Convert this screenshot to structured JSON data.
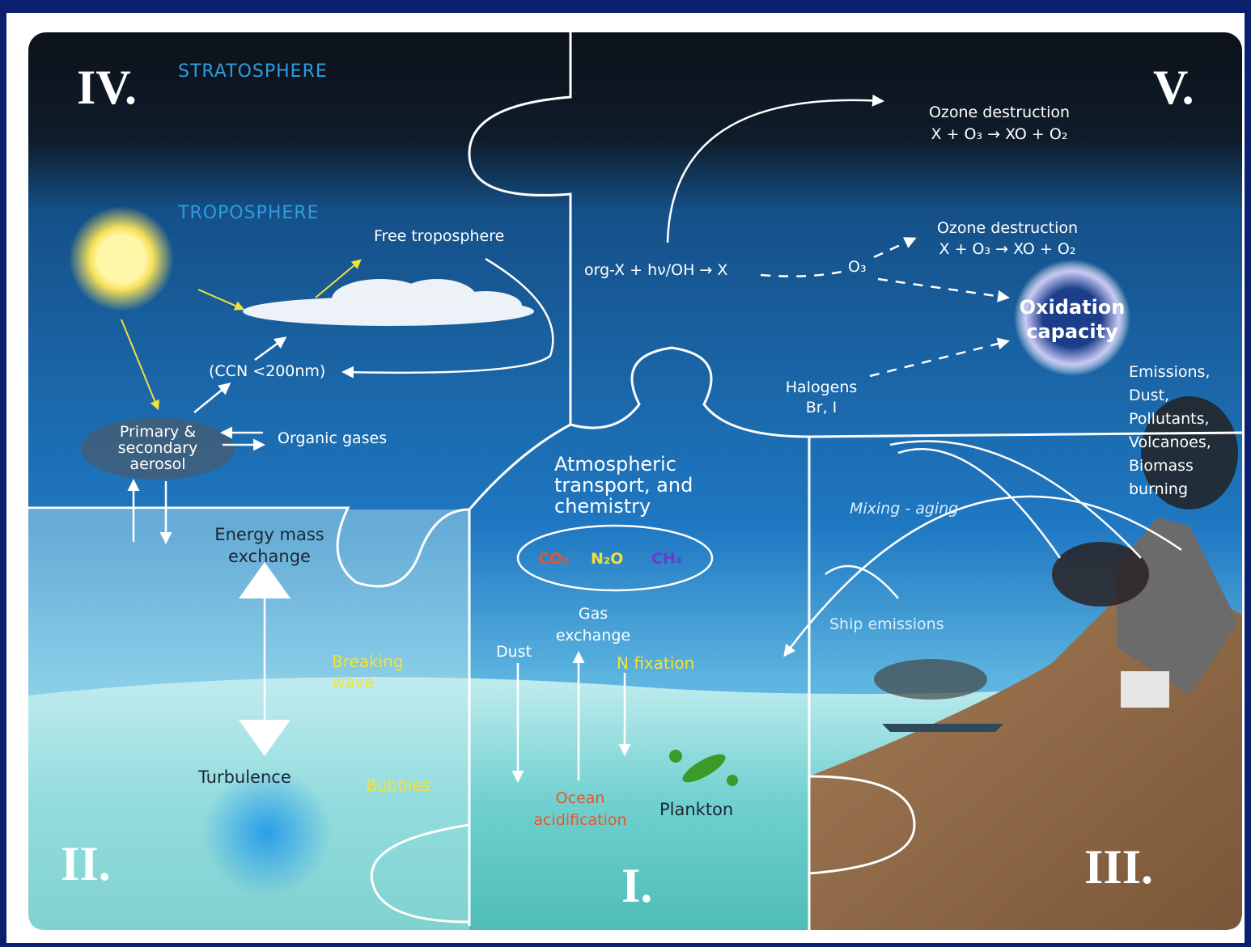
{
  "panels": {
    "iv": {
      "label": "IV.",
      "stratosphere": "STRATOSPHERE",
      "troposphere": "TROPOSPHERE",
      "free_troposphere": "Free troposphere",
      "ccn": "(CCN <200nm)",
      "aerosol": [
        "Primary &",
        "secondary",
        "aerosol"
      ],
      "organic_gases": "Organic gases"
    },
    "v": {
      "label": "V.",
      "ozone_1": [
        "Ozone destruction",
        "X + O₃ → XO + O₂"
      ],
      "ozone_2": [
        "Ozone destruction",
        "X + O₃ → XO + O₂"
      ],
      "reaction": "org-X + hν/OH → X",
      "o3": "O₃",
      "oxidation": [
        "Oxidation",
        "capacity"
      ],
      "halogens": [
        "Halogens",
        "Br, I"
      ]
    },
    "ii": {
      "label": "II.",
      "energy": [
        "Energy mass",
        "exchange"
      ],
      "breaking_wave": [
        "Breaking",
        "wave"
      ],
      "turbulence": "Turbulence",
      "bubbles": "Bubbles"
    },
    "i": {
      "label": "I.",
      "transport": [
        "Atmospheric",
        "transport, and",
        "chemistry"
      ],
      "gases": [
        "CO₂",
        "N₂O",
        "CH₄"
      ],
      "gas_exchange": [
        "Gas",
        "exchange"
      ],
      "dust": "Dust",
      "n_fixation": "N fixation",
      "acidification": [
        "Ocean",
        "acidification"
      ],
      "plankton": "Plankton"
    },
    "iii": {
      "label": "III.",
      "emissions": [
        "Emissions,",
        "Dust,",
        "Pollutants,",
        "Volcanoes,",
        "Biomass",
        "burning"
      ],
      "mixing": "Mixing - aging",
      "ship": "Ship emissions"
    }
  }
}
